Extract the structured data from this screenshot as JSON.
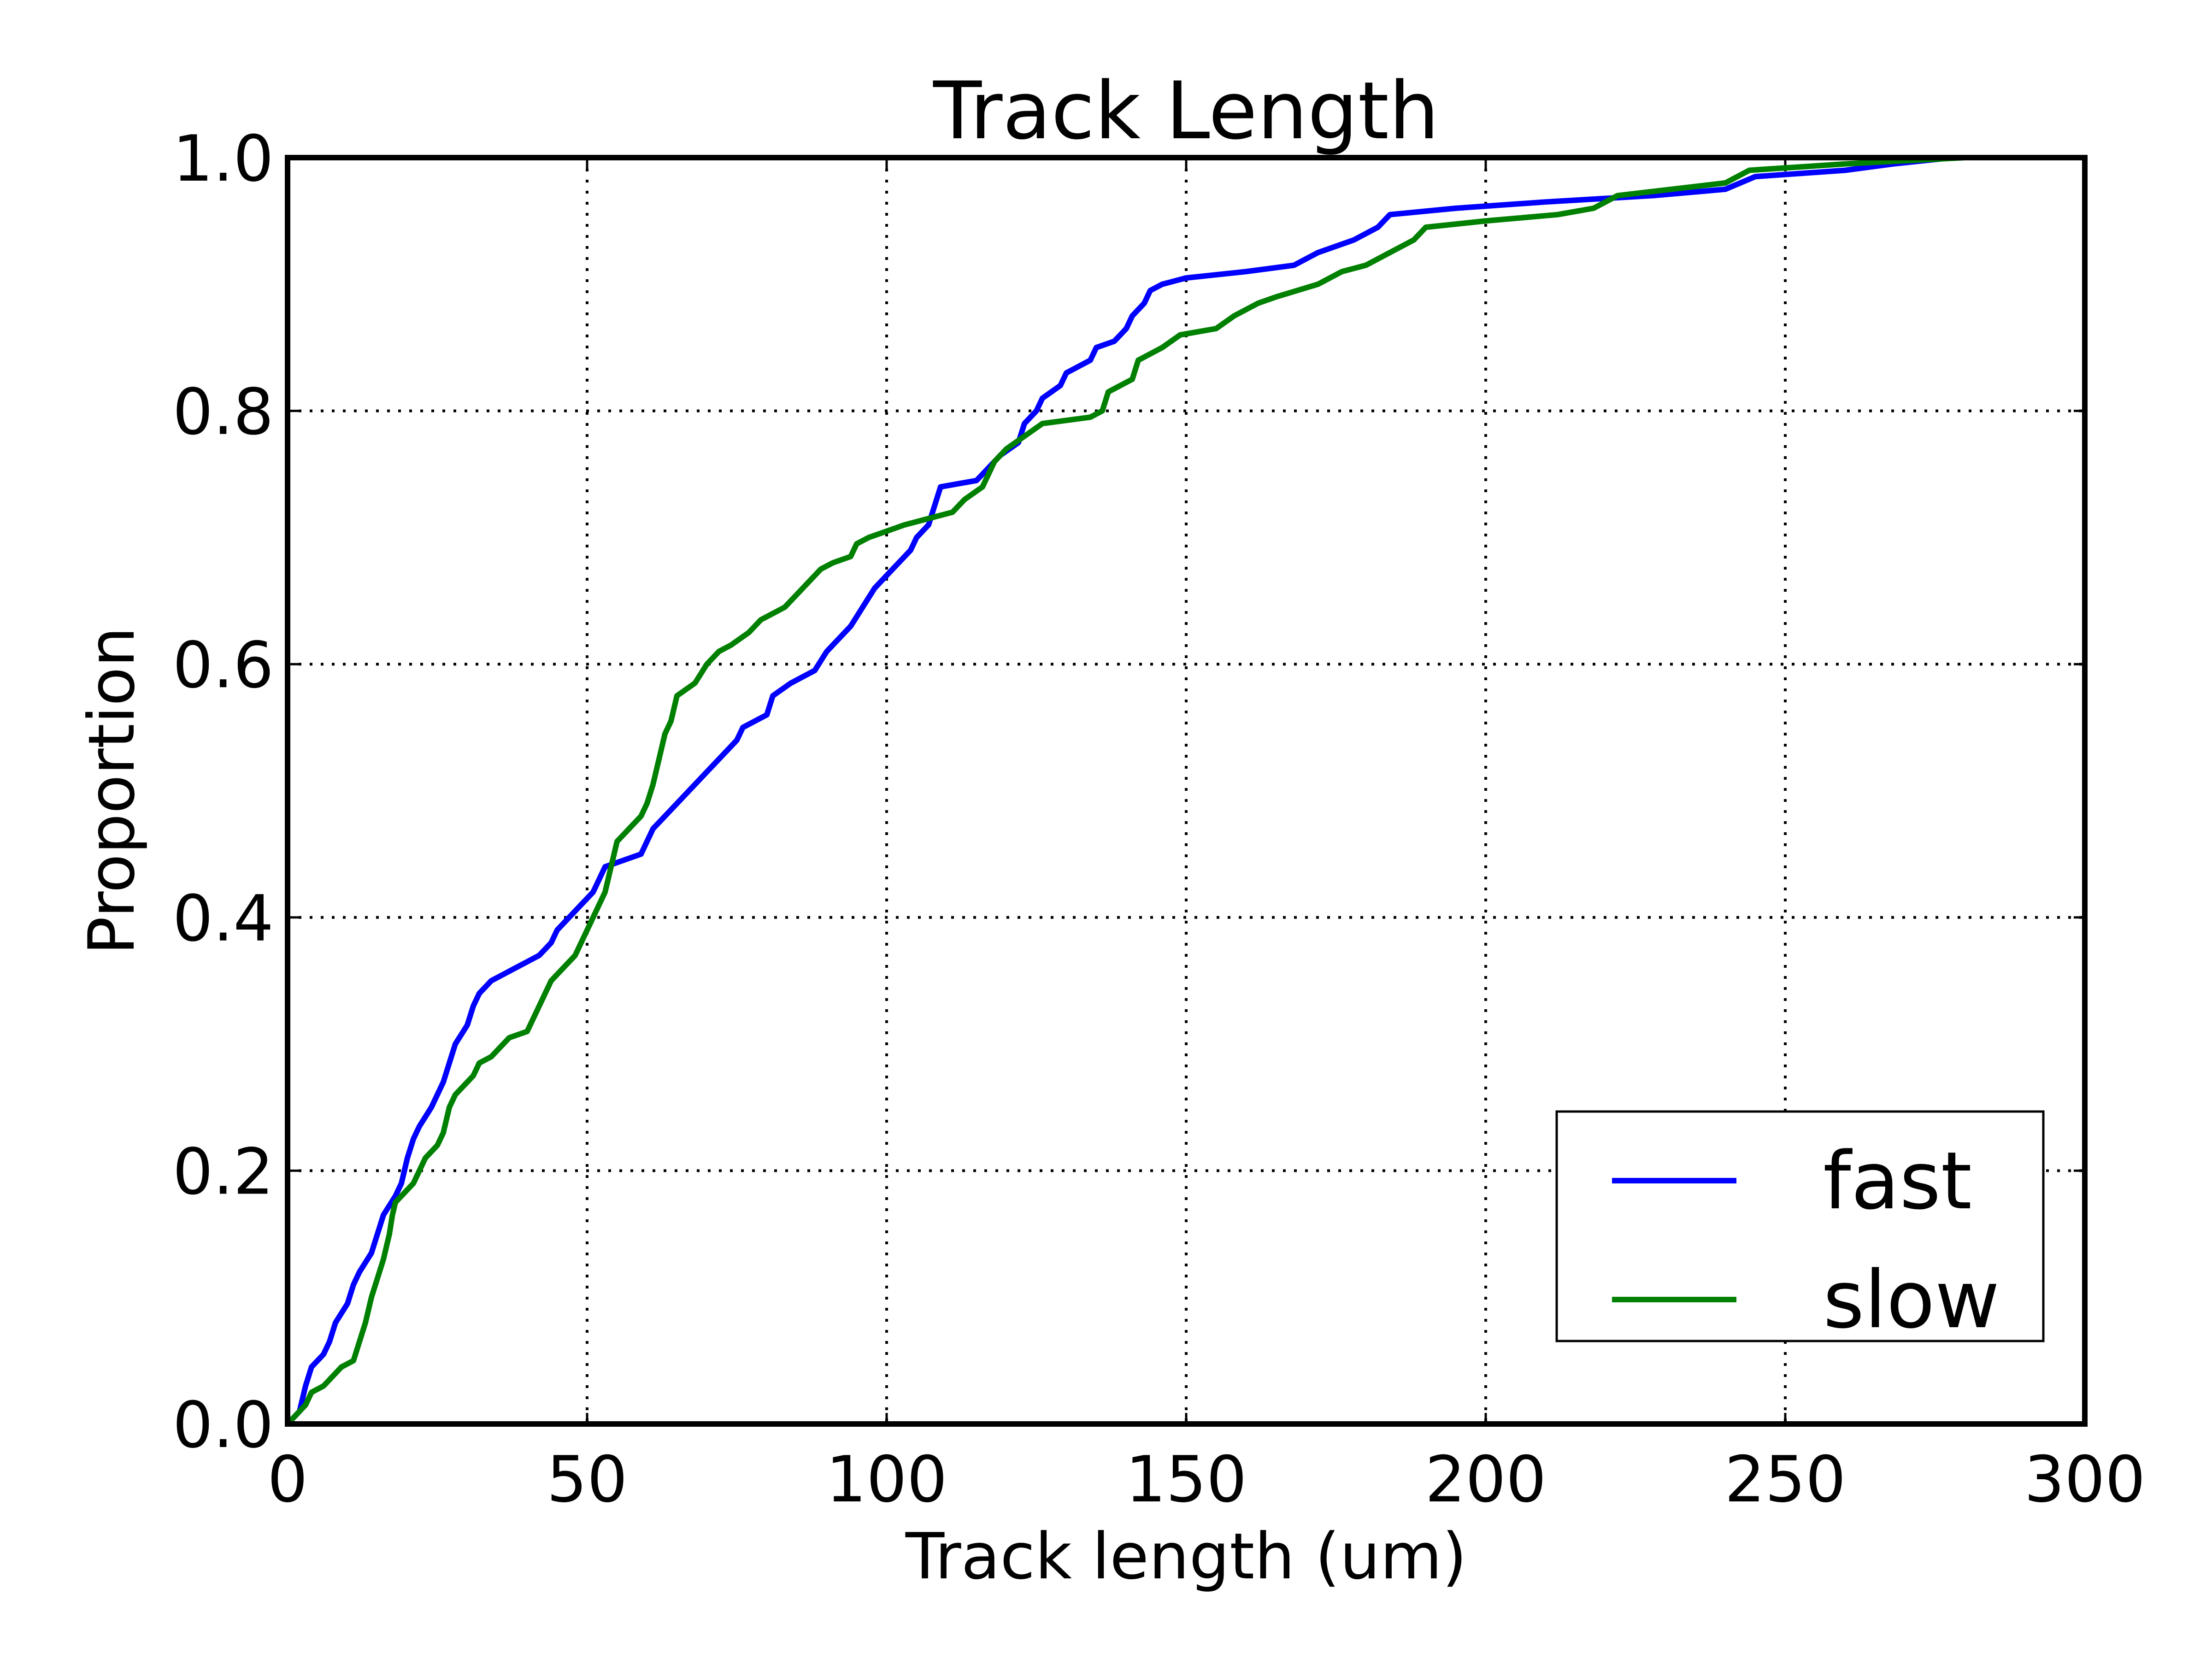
{
  "chart_data": {
    "type": "line",
    "title": "Track Length",
    "xlabel": "Track length (um)",
    "ylabel": "Proportion",
    "xlim": [
      0,
      300
    ],
    "ylim": [
      0,
      1.0
    ],
    "xticks": [
      0,
      50,
      100,
      150,
      200,
      250,
      300
    ],
    "yticks": [
      0.0,
      0.2,
      0.4,
      0.6,
      0.8,
      1.0
    ],
    "xtick_labels": [
      "0",
      "50",
      "100",
      "150",
      "200",
      "250",
      "300"
    ],
    "ytick_labels": [
      "0.0",
      "0.2",
      "0.4",
      "0.6",
      "0.8",
      "1.0"
    ],
    "grid": true,
    "legend_position": "bottom-right",
    "series": [
      {
        "name": "fast",
        "color": "#0000ff",
        "points": [
          [
            0,
            0.0
          ],
          [
            2,
            0.01
          ],
          [
            3,
            0.03
          ],
          [
            4,
            0.045
          ],
          [
            6,
            0.055
          ],
          [
            7,
            0.065
          ],
          [
            8,
            0.08
          ],
          [
            10,
            0.095
          ],
          [
            11,
            0.11
          ],
          [
            12,
            0.12
          ],
          [
            14,
            0.135
          ],
          [
            15,
            0.15
          ],
          [
            16,
            0.165
          ],
          [
            18,
            0.18
          ],
          [
            19,
            0.19
          ],
          [
            20,
            0.21
          ],
          [
            21,
            0.225
          ],
          [
            22,
            0.235
          ],
          [
            24,
            0.25
          ],
          [
            25,
            0.26
          ],
          [
            26,
            0.27
          ],
          [
            27,
            0.285
          ],
          [
            28,
            0.3
          ],
          [
            30,
            0.315
          ],
          [
            31,
            0.33
          ],
          [
            32,
            0.34
          ],
          [
            34,
            0.35
          ],
          [
            36,
            0.355
          ],
          [
            38,
            0.36
          ],
          [
            40,
            0.365
          ],
          [
            42,
            0.37
          ],
          [
            44,
            0.38
          ],
          [
            45,
            0.39
          ],
          [
            47,
            0.4
          ],
          [
            49,
            0.41
          ],
          [
            51,
            0.42
          ],
          [
            52,
            0.43
          ],
          [
            53,
            0.44
          ],
          [
            56,
            0.445
          ],
          [
            59,
            0.45
          ],
          [
            60,
            0.46
          ],
          [
            61,
            0.47
          ],
          [
            63,
            0.48
          ],
          [
            65,
            0.49
          ],
          [
            67,
            0.5
          ],
          [
            69,
            0.51
          ],
          [
            71,
            0.52
          ],
          [
            73,
            0.53
          ],
          [
            75,
            0.54
          ],
          [
            76,
            0.55
          ],
          [
            80,
            0.56
          ],
          [
            81,
            0.575
          ],
          [
            84,
            0.585
          ],
          [
            88,
            0.595
          ],
          [
            90,
            0.61
          ],
          [
            92,
            0.62
          ],
          [
            94,
            0.63
          ],
          [
            96,
            0.645
          ],
          [
            98,
            0.66
          ],
          [
            100,
            0.67
          ],
          [
            102,
            0.68
          ],
          [
            104,
            0.69
          ],
          [
            105,
            0.7
          ],
          [
            107,
            0.71
          ],
          [
            109,
            0.74
          ],
          [
            115,
            0.745
          ],
          [
            117,
            0.755
          ],
          [
            119,
            0.765
          ],
          [
            122,
            0.775
          ],
          [
            123,
            0.79
          ],
          [
            125,
            0.8
          ],
          [
            126,
            0.81
          ],
          [
            129,
            0.82
          ],
          [
            130,
            0.83
          ],
          [
            134,
            0.84
          ],
          [
            135,
            0.85
          ],
          [
            138,
            0.855
          ],
          [
            140,
            0.865
          ],
          [
            141,
            0.875
          ],
          [
            143,
            0.885
          ],
          [
            144,
            0.895
          ],
          [
            146,
            0.9
          ],
          [
            150,
            0.905
          ],
          [
            160,
            0.91
          ],
          [
            168,
            0.915
          ],
          [
            172,
            0.925
          ],
          [
            178,
            0.935
          ],
          [
            182,
            0.945
          ],
          [
            184,
            0.955
          ],
          [
            195,
            0.96
          ],
          [
            210,
            0.965
          ],
          [
            228,
            0.97
          ],
          [
            240,
            0.975
          ],
          [
            245,
            0.985
          ],
          [
            260,
            0.99
          ],
          [
            268,
            0.995
          ],
          [
            278,
            1.0
          ]
        ]
      },
      {
        "name": "slow",
        "color": "#008000",
        "points": [
          [
            0,
            0.0
          ],
          [
            1,
            0.005
          ],
          [
            3,
            0.015
          ],
          [
            4,
            0.025
          ],
          [
            6,
            0.03
          ],
          [
            8,
            0.04
          ],
          [
            9,
            0.045
          ],
          [
            11,
            0.05
          ],
          [
            12,
            0.065
          ],
          [
            13,
            0.08
          ],
          [
            14,
            0.1
          ],
          [
            15,
            0.115
          ],
          [
            16,
            0.13
          ],
          [
            17,
            0.15
          ],
          [
            17.5,
            0.165
          ],
          [
            18,
            0.175
          ],
          [
            20,
            0.185
          ],
          [
            21,
            0.19
          ],
          [
            22,
            0.2
          ],
          [
            23,
            0.21
          ],
          [
            25,
            0.22
          ],
          [
            26,
            0.23
          ],
          [
            27,
            0.25
          ],
          [
            28,
            0.26
          ],
          [
            29,
            0.265
          ],
          [
            30,
            0.27
          ],
          [
            31,
            0.275
          ],
          [
            32,
            0.285
          ],
          [
            34,
            0.29
          ],
          [
            36,
            0.3
          ],
          [
            37,
            0.305
          ],
          [
            40,
            0.31
          ],
          [
            41,
            0.32
          ],
          [
            42,
            0.33
          ],
          [
            43,
            0.34
          ],
          [
            44,
            0.35
          ],
          [
            46,
            0.36
          ],
          [
            48,
            0.37
          ],
          [
            49,
            0.38
          ],
          [
            50,
            0.39
          ],
          [
            51,
            0.4
          ],
          [
            52,
            0.41
          ],
          [
            53,
            0.42
          ],
          [
            54,
            0.44
          ],
          [
            55,
            0.46
          ],
          [
            56,
            0.465
          ],
          [
            57,
            0.47
          ],
          [
            59,
            0.48
          ],
          [
            60,
            0.49
          ],
          [
            61,
            0.505
          ],
          [
            62,
            0.525
          ],
          [
            63,
            0.545
          ],
          [
            64,
            0.555
          ],
          [
            65,
            0.575
          ],
          [
            68,
            0.585
          ],
          [
            70,
            0.6
          ],
          [
            72,
            0.61
          ],
          [
            74,
            0.615
          ],
          [
            77,
            0.625
          ],
          [
            79,
            0.635
          ],
          [
            81,
            0.64
          ],
          [
            83,
            0.645
          ],
          [
            85,
            0.655
          ],
          [
            87,
            0.665
          ],
          [
            89,
            0.675
          ],
          [
            91,
            0.68
          ],
          [
            94,
            0.685
          ],
          [
            95,
            0.695
          ],
          [
            97,
            0.7
          ],
          [
            100,
            0.705
          ],
          [
            103,
            0.71
          ],
          [
            107,
            0.715
          ],
          [
            111,
            0.72
          ],
          [
            113,
            0.73
          ],
          [
            116,
            0.74
          ],
          [
            118,
            0.76
          ],
          [
            120,
            0.77
          ],
          [
            123,
            0.78
          ],
          [
            126,
            0.79
          ],
          [
            134,
            0.795
          ],
          [
            136,
            0.8
          ],
          [
            137,
            0.815
          ],
          [
            141,
            0.825
          ],
          [
            142,
            0.84
          ],
          [
            146,
            0.85
          ],
          [
            149,
            0.86
          ],
          [
            155,
            0.865
          ],
          [
            158,
            0.875
          ],
          [
            162,
            0.885
          ],
          [
            165,
            0.89
          ],
          [
            172,
            0.9
          ],
          [
            176,
            0.91
          ],
          [
            180,
            0.915
          ],
          [
            184,
            0.925
          ],
          [
            188,
            0.935
          ],
          [
            190,
            0.945
          ],
          [
            200,
            0.95
          ],
          [
            212,
            0.955
          ],
          [
            218,
            0.96
          ],
          [
            222,
            0.97
          ],
          [
            240,
            0.98
          ],
          [
            244,
            0.99
          ],
          [
            260,
            0.995
          ],
          [
            280,
            1.0
          ]
        ]
      }
    ]
  }
}
